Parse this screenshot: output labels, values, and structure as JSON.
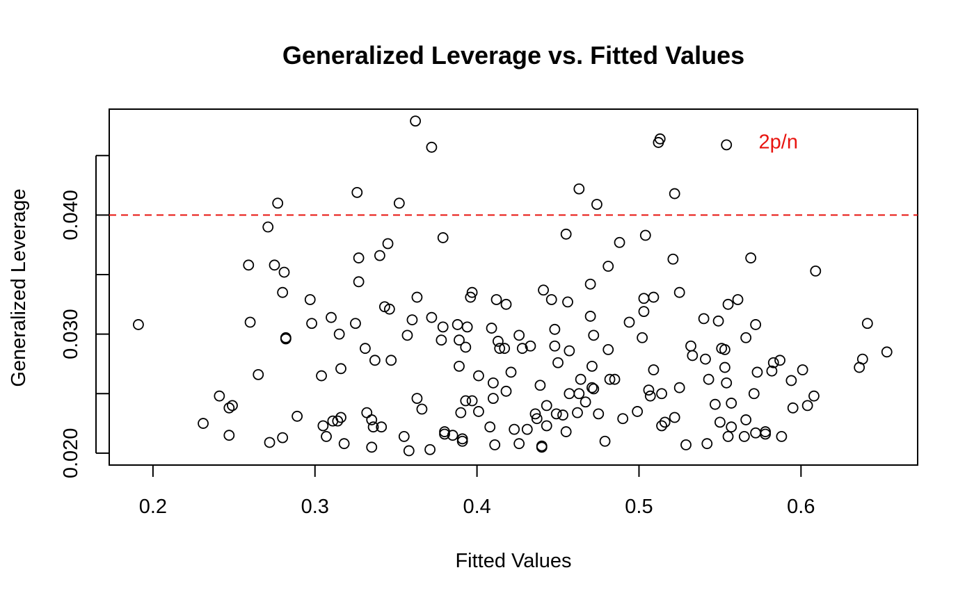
{
  "chart_data": {
    "type": "scatter",
    "title": "Generalized Leverage vs. Fitted Values",
    "xlabel": "Fitted Values",
    "ylabel": "Generalized Leverage",
    "xlim": [
      0.173,
      0.672
    ],
    "ylim": [
      0.019,
      0.0489
    ],
    "x_ticks": [
      0.2,
      0.3,
      0.4,
      0.5,
      0.6
    ],
    "x_tick_labels": [
      "0.2",
      "0.3",
      "0.4",
      "0.5",
      "0.6"
    ],
    "y_ticks": [
      0.02,
      0.025,
      0.03,
      0.035,
      0.04,
      0.045
    ],
    "y_tick_labels": [
      "0.020",
      "",
      "0.030",
      "",
      "0.040",
      ""
    ],
    "grid": false,
    "threshold": {
      "y": 0.04,
      "label": "2p/n",
      "color": "#e8140f",
      "style": "dashed"
    },
    "threshold_label_x": 0.586,
    "threshold_label_y": 0.0456,
    "points": [
      [
        0.191,
        0.0308
      ],
      [
        0.231,
        0.0225
      ],
      [
        0.241,
        0.0248
      ],
      [
        0.247,
        0.0215
      ],
      [
        0.247,
        0.0238
      ],
      [
        0.249,
        0.024
      ],
      [
        0.259,
        0.0358
      ],
      [
        0.26,
        0.031
      ],
      [
        0.265,
        0.0266
      ],
      [
        0.271,
        0.039
      ],
      [
        0.272,
        0.0209
      ],
      [
        0.275,
        0.0358
      ],
      [
        0.277,
        0.041
      ],
      [
        0.28,
        0.0213
      ],
      [
        0.28,
        0.0335
      ],
      [
        0.281,
        0.0352
      ],
      [
        0.282,
        0.0297
      ],
      [
        0.282,
        0.0296
      ],
      [
        0.289,
        0.0231
      ],
      [
        0.297,
        0.0329
      ],
      [
        0.298,
        0.0309
      ],
      [
        0.304,
        0.0265
      ],
      [
        0.305,
        0.0223
      ],
      [
        0.307,
        0.0214
      ],
      [
        0.31,
        0.0314
      ],
      [
        0.311,
        0.0227
      ],
      [
        0.314,
        0.0227
      ],
      [
        0.315,
        0.03
      ],
      [
        0.316,
        0.0271
      ],
      [
        0.316,
        0.023
      ],
      [
        0.318,
        0.0208
      ],
      [
        0.325,
        0.0309
      ],
      [
        0.326,
        0.0419
      ],
      [
        0.327,
        0.0364
      ],
      [
        0.327,
        0.0344
      ],
      [
        0.331,
        0.0288
      ],
      [
        0.332,
        0.0234
      ],
      [
        0.335,
        0.0228
      ],
      [
        0.335,
        0.0205
      ],
      [
        0.336,
        0.0222
      ],
      [
        0.337,
        0.0278
      ],
      [
        0.34,
        0.0366
      ],
      [
        0.341,
        0.0222
      ],
      [
        0.343,
        0.0323
      ],
      [
        0.345,
        0.0376
      ],
      [
        0.346,
        0.0321
      ],
      [
        0.347,
        0.0278
      ],
      [
        0.352,
        0.041
      ],
      [
        0.355,
        0.0214
      ],
      [
        0.357,
        0.0299
      ],
      [
        0.358,
        0.0202
      ],
      [
        0.36,
        0.0312
      ],
      [
        0.362,
        0.0479
      ],
      [
        0.363,
        0.0331
      ],
      [
        0.363,
        0.0246
      ],
      [
        0.366,
        0.0237
      ],
      [
        0.371,
        0.0203
      ],
      [
        0.372,
        0.0457
      ],
      [
        0.372,
        0.0314
      ],
      [
        0.378,
        0.0295
      ],
      [
        0.379,
        0.0381
      ],
      [
        0.379,
        0.0306
      ],
      [
        0.38,
        0.0218
      ],
      [
        0.38,
        0.0216
      ],
      [
        0.385,
        0.0215
      ],
      [
        0.388,
        0.0308
      ],
      [
        0.389,
        0.0273
      ],
      [
        0.389,
        0.0295
      ],
      [
        0.39,
        0.0234
      ],
      [
        0.391,
        0.0212
      ],
      [
        0.391,
        0.021
      ],
      [
        0.393,
        0.0289
      ],
      [
        0.393,
        0.0244
      ],
      [
        0.394,
        0.0306
      ],
      [
        0.396,
        0.0331
      ],
      [
        0.397,
        0.0244
      ],
      [
        0.397,
        0.0335
      ],
      [
        0.401,
        0.0265
      ],
      [
        0.401,
        0.0235
      ],
      [
        0.408,
        0.0222
      ],
      [
        0.409,
        0.0305
      ],
      [
        0.41,
        0.0246
      ],
      [
        0.41,
        0.0259
      ],
      [
        0.411,
        0.0207
      ],
      [
        0.412,
        0.0329
      ],
      [
        0.413,
        0.0294
      ],
      [
        0.414,
        0.0288
      ],
      [
        0.417,
        0.0288
      ],
      [
        0.418,
        0.0325
      ],
      [
        0.418,
        0.0252
      ],
      [
        0.421,
        0.0268
      ],
      [
        0.423,
        0.022
      ],
      [
        0.426,
        0.0208
      ],
      [
        0.426,
        0.0299
      ],
      [
        0.428,
        0.0288
      ],
      [
        0.431,
        0.022
      ],
      [
        0.433,
        0.029
      ],
      [
        0.436,
        0.0233
      ],
      [
        0.437,
        0.0229
      ],
      [
        0.439,
        0.0257
      ],
      [
        0.44,
        0.0206
      ],
      [
        0.44,
        0.0205
      ],
      [
        0.441,
        0.0337
      ],
      [
        0.443,
        0.024
      ],
      [
        0.443,
        0.0223
      ],
      [
        0.446,
        0.0329
      ],
      [
        0.448,
        0.0304
      ],
      [
        0.448,
        0.029
      ],
      [
        0.449,
        0.0233
      ],
      [
        0.45,
        0.0276
      ],
      [
        0.453,
        0.0232
      ],
      [
        0.455,
        0.0384
      ],
      [
        0.455,
        0.0218
      ],
      [
        0.456,
        0.0327
      ],
      [
        0.457,
        0.0286
      ],
      [
        0.457,
        0.025
      ],
      [
        0.462,
        0.0234
      ],
      [
        0.463,
        0.0422
      ],
      [
        0.463,
        0.025
      ],
      [
        0.464,
        0.0262
      ],
      [
        0.467,
        0.0243
      ],
      [
        0.47,
        0.0315
      ],
      [
        0.47,
        0.0342
      ],
      [
        0.471,
        0.0255
      ],
      [
        0.471,
        0.0273
      ],
      [
        0.472,
        0.0299
      ],
      [
        0.472,
        0.0254
      ],
      [
        0.474,
        0.0409
      ],
      [
        0.475,
        0.0233
      ],
      [
        0.479,
        0.021
      ],
      [
        0.481,
        0.0357
      ],
      [
        0.481,
        0.0287
      ],
      [
        0.482,
        0.0262
      ],
      [
        0.485,
        0.0262
      ],
      [
        0.488,
        0.0377
      ],
      [
        0.49,
        0.0229
      ],
      [
        0.494,
        0.031
      ],
      [
        0.499,
        0.0235
      ],
      [
        0.502,
        0.0297
      ],
      [
        0.503,
        0.033
      ],
      [
        0.503,
        0.0319
      ],
      [
        0.504,
        0.0383
      ],
      [
        0.506,
        0.0253
      ],
      [
        0.507,
        0.0248
      ],
      [
        0.509,
        0.0331
      ],
      [
        0.509,
        0.027
      ],
      [
        0.512,
        0.0461
      ],
      [
        0.513,
        0.0464
      ],
      [
        0.514,
        0.025
      ],
      [
        0.514,
        0.0223
      ],
      [
        0.516,
        0.0226
      ],
      [
        0.521,
        0.0363
      ],
      [
        0.522,
        0.023
      ],
      [
        0.522,
        0.0418
      ],
      [
        0.525,
        0.0335
      ],
      [
        0.525,
        0.0255
      ],
      [
        0.529,
        0.0207
      ],
      [
        0.532,
        0.029
      ],
      [
        0.533,
        0.0282
      ],
      [
        0.54,
        0.0313
      ],
      [
        0.541,
        0.0279
      ],
      [
        0.542,
        0.0208
      ],
      [
        0.543,
        0.0262
      ],
      [
        0.547,
        0.0241
      ],
      [
        0.549,
        0.0311
      ],
      [
        0.55,
        0.0226
      ],
      [
        0.551,
        0.0288
      ],
      [
        0.553,
        0.0287
      ],
      [
        0.553,
        0.0272
      ],
      [
        0.554,
        0.0259
      ],
      [
        0.554,
        0.0459
      ],
      [
        0.555,
        0.0325
      ],
      [
        0.555,
        0.0214
      ],
      [
        0.557,
        0.0222
      ],
      [
        0.557,
        0.0242
      ],
      [
        0.561,
        0.0329
      ],
      [
        0.565,
        0.0214
      ],
      [
        0.566,
        0.0297
      ],
      [
        0.566,
        0.0228
      ],
      [
        0.569,
        0.0364
      ],
      [
        0.571,
        0.025
      ],
      [
        0.572,
        0.0217
      ],
      [
        0.572,
        0.0308
      ],
      [
        0.573,
        0.0268
      ],
      [
        0.578,
        0.0218
      ],
      [
        0.578,
        0.0216
      ],
      [
        0.582,
        0.0269
      ],
      [
        0.583,
        0.0276
      ],
      [
        0.587,
        0.0278
      ],
      [
        0.588,
        0.0214
      ],
      [
        0.594,
        0.0261
      ],
      [
        0.595,
        0.0238
      ],
      [
        0.601,
        0.027
      ],
      [
        0.604,
        0.024
      ],
      [
        0.608,
        0.0248
      ],
      [
        0.609,
        0.0353
      ],
      [
        0.636,
        0.0272
      ],
      [
        0.638,
        0.0279
      ],
      [
        0.641,
        0.0309
      ],
      [
        0.653,
        0.0285
      ]
    ]
  }
}
